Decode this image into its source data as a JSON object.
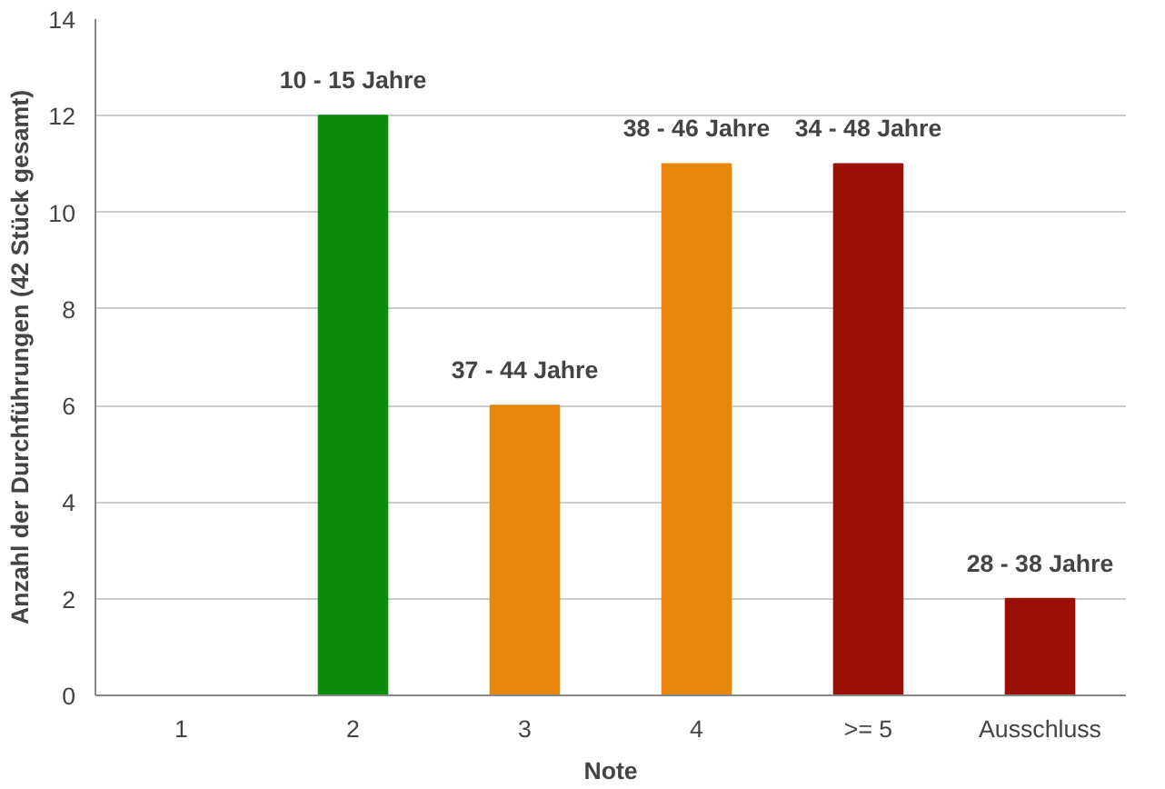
{
  "chart_data": {
    "type": "bar",
    "xlabel": "Note",
    "ylabel": "Anzahl der Durchführungen (42 Stück gesamt)",
    "categories": [
      "1",
      "2",
      "3",
      "4",
      ">= 5",
      "Ausschluss"
    ],
    "values": [
      0,
      12,
      6,
      11,
      11,
      2
    ],
    "colors": [
      "#0b8c0b",
      "#0b8c0b",
      "#e8860c",
      "#e8860c",
      "#9a1006",
      "#9a1006"
    ],
    "ylim": [
      0,
      14
    ],
    "yticks": [
      0,
      2,
      4,
      6,
      8,
      10,
      12,
      14
    ],
    "grid": "y",
    "annotations": [
      {
        "text": "10 - 15 Jahre",
        "x": "2",
        "y": 12
      },
      {
        "text": "37 - 44 Jahre",
        "x": "3",
        "y": 6
      },
      {
        "text": "38 - 46 Jahre",
        "x": "4",
        "y": 11
      },
      {
        "text": "34 - 48 Jahre",
        "x": ">= 5",
        "y": 11
      },
      {
        "text": "28 - 38 Jahre",
        "x": "Ausschluss",
        "y": 2
      }
    ]
  }
}
